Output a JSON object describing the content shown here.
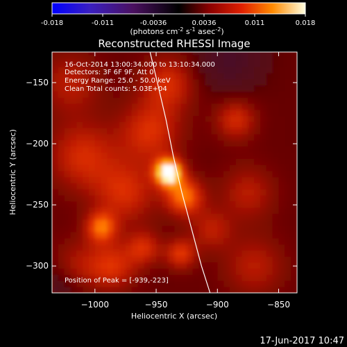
{
  "chart_data": {
    "type": "heatmap",
    "title": "Reconstructed RHESSI Image",
    "xlabel": "Heliocentric X (arcsec)",
    "ylabel": "Heliocentric Y (arcsec)",
    "xlim": [
      -1035,
      -835
    ],
    "ylim": [
      -322,
      -125
    ],
    "x_ticks": [
      -1000,
      -950,
      -900,
      -850
    ],
    "y_ticks": [
      -150,
      -200,
      -250,
      -300
    ],
    "colorbar": {
      "range": [
        -0.018,
        0.018
      ],
      "ticks": [
        "-0.018",
        "-0.011",
        "-0.0036",
        "0.0036",
        "0.011",
        "0.018"
      ],
      "unit_main": "(photons cm",
      "unit_exp1": "-2",
      "unit_mid1": " s",
      "unit_exp2": "-1",
      "unit_mid2": " asec",
      "unit_exp3": "-2",
      "unit_end": ")",
      "colormap": "hot-cold"
    },
    "annotations": [
      "16-Oct-2014 13:00:34.000 to 13:10:34.000",
      "Detectors: 3F 6F 9F, Att 0",
      "Energy Range: 25.0 - 50.0 keV",
      "Clean    Total counts: 5.03E+04"
    ],
    "peak_label": "Position of Peak = [-939,-223]",
    "peak": [
      -939,
      -223
    ],
    "sources": [
      {
        "x": -940,
        "y": -223,
        "intensity": 1.0,
        "sigma": 8
      },
      {
        "x": -927,
        "y": -243,
        "intensity": 0.62,
        "sigma": 11
      },
      {
        "x": -995,
        "y": -268,
        "intensity": 0.55,
        "sigma": 9
      },
      {
        "x": -930,
        "y": -290,
        "intensity": 0.45,
        "sigma": 9
      },
      {
        "x": -960,
        "y": -285,
        "intensity": 0.38,
        "sigma": 10
      },
      {
        "x": -1010,
        "y": -210,
        "intensity": 0.4,
        "sigma": 20
      },
      {
        "x": -955,
        "y": -190,
        "intensity": 0.42,
        "sigma": 18
      },
      {
        "x": -975,
        "y": -240,
        "intensity": 0.4,
        "sigma": 18
      },
      {
        "x": -985,
        "y": -300,
        "intensity": 0.4,
        "sigma": 14
      },
      {
        "x": -940,
        "y": -150,
        "intensity": 0.4,
        "sigma": 16
      },
      {
        "x": -1020,
        "y": -150,
        "intensity": 0.3,
        "sigma": 18
      },
      {
        "x": -885,
        "y": -180,
        "intensity": 0.4,
        "sigma": 12
      },
      {
        "x": -875,
        "y": -240,
        "intensity": 0.3,
        "sigma": 16
      },
      {
        "x": -870,
        "y": -300,
        "intensity": 0.3,
        "sigma": 18
      },
      {
        "x": -905,
        "y": -270,
        "intensity": 0.3,
        "sigma": 12
      },
      {
        "x": -1015,
        "y": -300,
        "intensity": 0.28,
        "sigma": 16
      }
    ],
    "limb_curve": [
      [
        -955,
        -125
      ],
      [
        -949,
        -150
      ],
      [
        -942,
        -180
      ],
      [
        -936,
        -210
      ],
      [
        -929,
        -240
      ],
      [
        -921,
        -270
      ],
      [
        -913,
        -300
      ],
      [
        -906,
        -322
      ]
    ],
    "limb_color": "#ffffff"
  },
  "footer_date": "17-Jun-2017 10:47"
}
